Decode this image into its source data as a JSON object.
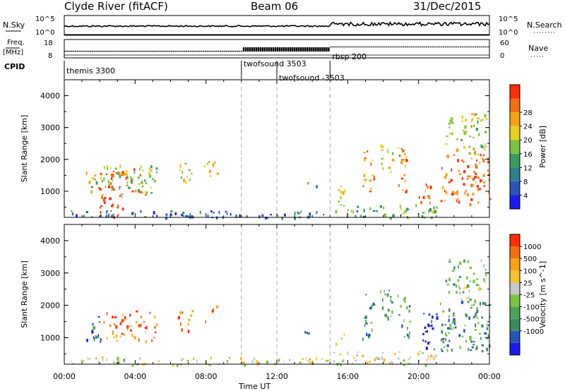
{
  "header": {
    "station": "Clyde River (fitACF)",
    "beam": "Beam 06",
    "date": "31/Dec/2015"
  },
  "aux_panels": {
    "nsky": {
      "label": "N.Sky",
      "left_ticks": [
        "10^5",
        "10^0"
      ],
      "right_ticks": [
        "10^5",
        "10^0"
      ],
      "right_label": "N.Search"
    },
    "freq": {
      "label_top": "Freq.",
      "label_unit": "[MHz]",
      "left_ticks": [
        "18",
        "8"
      ],
      "right_ticks": [
        "60",
        "0"
      ],
      "right_label": "Nave"
    },
    "cpid": {
      "label": "CPID",
      "modes": [
        {
          "name": "themis 3300",
          "start_h": 0.0
        },
        {
          "name": "twofsound 3503",
          "start_h": 10.0
        },
        {
          "name": "twofsound -3503",
          "start_h": 12.0
        },
        {
          "name": "rbsp 200",
          "start_h": 15.0
        }
      ]
    }
  },
  "chart_data": [
    {
      "type": "heatmap",
      "title": "",
      "ylabel": "Slant Range [km]",
      "xlabel": "Time UT",
      "xlim": [
        0,
        24
      ],
      "ylim": [
        180,
        4500
      ],
      "yticks": [
        "1000",
        "2000",
        "3000",
        "4000"
      ],
      "xticks": [
        "00:00",
        "04:00",
        "08:00",
        "12:00",
        "16:00",
        "20:00",
        "00:00"
      ],
      "colorbar": {
        "label": "Power [dB]",
        "ticks": [
          "4",
          "8",
          "12",
          "16",
          "20",
          "24",
          "28"
        ],
        "colors": [
          "#1c1cf0",
          "#2a55b8",
          "#2e7e8e",
          "#3a9a5c",
          "#78c441",
          "#e6d21e",
          "#f5a215",
          "#f07010",
          "#ff2c0a"
        ]
      },
      "echo_regions": [
        {
          "t0": 1.2,
          "t1": 5.2,
          "r0": 900,
          "r1": 1850,
          "v": 0.55
        },
        {
          "t0": 1.9,
          "t1": 3.3,
          "r0": 200,
          "r1": 1700,
          "v": 0.95
        },
        {
          "t0": 3.3,
          "t1": 4.4,
          "r0": 1000,
          "r1": 1800,
          "v": 0.85
        },
        {
          "t0": 6.4,
          "t1": 7.2,
          "r0": 1200,
          "r1": 1900,
          "v": 0.6
        },
        {
          "t0": 7.8,
          "t1": 8.6,
          "r0": 1500,
          "r1": 2000,
          "v": 0.65
        },
        {
          "t0": 13.5,
          "t1": 14.2,
          "r0": 1050,
          "r1": 1300,
          "v": 0.5
        },
        {
          "t0": 15.3,
          "t1": 15.9,
          "r0": 700,
          "r1": 1200,
          "v": 0.6
        },
        {
          "t0": 16.8,
          "t1": 17.5,
          "r0": 1000,
          "r1": 2400,
          "v": 0.8
        },
        {
          "t0": 17.8,
          "t1": 18.5,
          "r0": 1600,
          "r1": 2600,
          "v": 0.6
        },
        {
          "t0": 18.8,
          "t1": 19.5,
          "r0": 1000,
          "r1": 2400,
          "v": 0.75
        },
        {
          "t0": 20.0,
          "t1": 20.7,
          "r0": 400,
          "r1": 1300,
          "v": 0.8
        },
        {
          "t0": 21.2,
          "t1": 24.0,
          "r0": 600,
          "r1": 2200,
          "v": 0.85
        },
        {
          "t0": 21.5,
          "t1": 23.8,
          "r0": 2200,
          "r1": 3500,
          "v": 0.55
        },
        {
          "t0": 0.0,
          "t1": 15.0,
          "r0": 180,
          "r1": 420,
          "v": 0.25
        },
        {
          "t0": 15.0,
          "t1": 21.0,
          "r0": 180,
          "r1": 600,
          "v": 0.45
        }
      ]
    },
    {
      "type": "heatmap",
      "title": "",
      "ylabel": "Slant Range [km]",
      "xlabel": "Time UT",
      "xlim": [
        0,
        24
      ],
      "ylim": [
        180,
        4500
      ],
      "yticks": [
        "1000",
        "2000",
        "3000",
        "4000"
      ],
      "xticks": [
        "00:00",
        "04:00",
        "08:00",
        "12:00",
        "16:00",
        "20:00",
        "00:00"
      ],
      "colorbar": {
        "label": "Velocity [m s^-1]",
        "ticks": [
          "1000",
          "500",
          "100",
          "25",
          "-25",
          "-100",
          "-500",
          "-1000"
        ],
        "colors": [
          "#1c1cf0",
          "#2a55b8",
          "#3d8a62",
          "#4fa05a",
          "#78c441",
          "#c8c8c8",
          "#f5c232",
          "#f5a215",
          "#f07010",
          "#ff2c0a"
        ]
      },
      "echo_regions": [
        {
          "t0": 1.2,
          "t1": 2.2,
          "r0": 900,
          "r1": 1800,
          "v": 0.2
        },
        {
          "t0": 2.2,
          "t1": 5.2,
          "r0": 900,
          "r1": 1850,
          "v": 0.85
        },
        {
          "t0": 6.4,
          "t1": 7.2,
          "r0": 1200,
          "r1": 1900,
          "v": 0.85
        },
        {
          "t0": 7.8,
          "t1": 8.6,
          "r0": 1500,
          "r1": 2000,
          "v": 0.85
        },
        {
          "t0": 13.5,
          "t1": 14.2,
          "r0": 1050,
          "r1": 1300,
          "v": 0.2
        },
        {
          "t0": 15.3,
          "t1": 15.9,
          "r0": 700,
          "r1": 1200,
          "v": 0.85
        },
        {
          "t0": 16.8,
          "t1": 17.5,
          "r0": 1000,
          "r1": 2400,
          "v": 0.3
        },
        {
          "t0": 17.8,
          "t1": 18.5,
          "r0": 1600,
          "r1": 2600,
          "v": 0.35
        },
        {
          "t0": 18.8,
          "t1": 19.5,
          "r0": 1000,
          "r1": 2400,
          "v": 0.3
        },
        {
          "t0": 20.2,
          "t1": 21.0,
          "r0": 600,
          "r1": 1800,
          "v": 0.1
        },
        {
          "t0": 21.2,
          "t1": 24.0,
          "r0": 600,
          "r1": 2200,
          "v": 0.3
        },
        {
          "t0": 21.5,
          "t1": 23.8,
          "r0": 2200,
          "r1": 3500,
          "v": 0.45
        },
        {
          "t0": 0.0,
          "t1": 15.0,
          "r0": 180,
          "r1": 420,
          "v": 0.55
        },
        {
          "t0": 15.0,
          "t1": 21.0,
          "r0": 180,
          "r1": 600,
          "v": 0.6
        }
      ]
    }
  ]
}
